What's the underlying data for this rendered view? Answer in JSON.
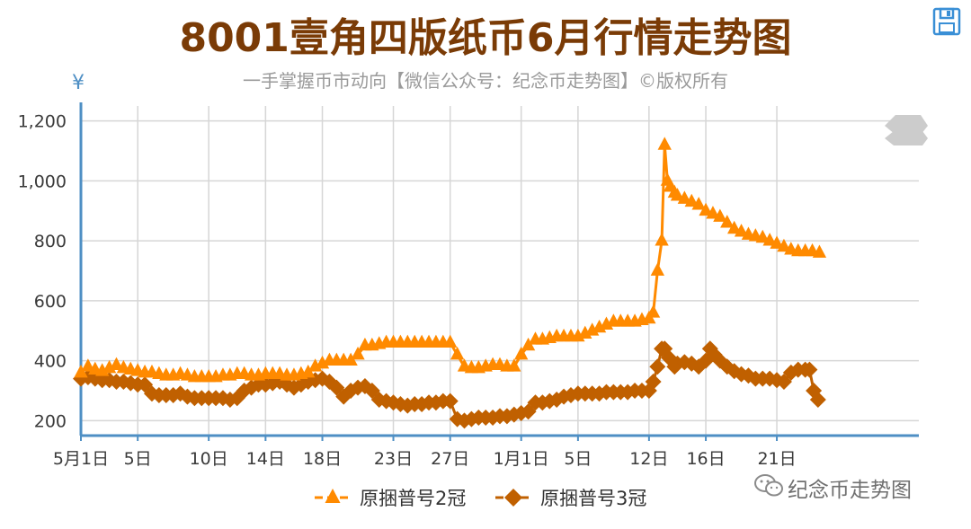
{
  "title": "8001壹角四版纸币6月行情走势图",
  "subtitle": "一手掌握币市动向【微信公众号：纪念币走势图】©版权所有",
  "y_unit": "¥",
  "watermark": "纪念币走势图",
  "icons": {
    "save": "save-icon",
    "zoom": "zoom-handle-icon",
    "wechat": "wechat-icon"
  },
  "colors": {
    "series1": "#ff8a00",
    "series2": "#c06000",
    "axis": "#4e8fc4",
    "grid": "#d6d6d6",
    "title": "#7a3b06"
  },
  "chart_data": {
    "type": "line",
    "ylim": [
      150,
      1250
    ],
    "y_ticks": [
      200,
      400,
      600,
      800,
      1000,
      1200
    ],
    "y_tick_labels": [
      "200",
      "400",
      "600",
      "800",
      "1,000",
      "1,200"
    ],
    "x_index_range": [
      0,
      59
    ],
    "x_ticks": [
      {
        "i": 0,
        "label": "5月1日"
      },
      {
        "i": 4,
        "label": "5日"
      },
      {
        "i": 9,
        "label": "10日"
      },
      {
        "i": 13,
        "label": "14日"
      },
      {
        "i": 17,
        "label": "18日"
      },
      {
        "i": 22,
        "label": "23日"
      },
      {
        "i": 26,
        "label": "27日"
      },
      {
        "i": 31,
        "label": "1月1日"
      },
      {
        "i": 35,
        "label": "5日"
      },
      {
        "i": 40,
        "label": "12日"
      },
      {
        "i": 44,
        "label": "16日"
      },
      {
        "i": 49,
        "label": "21日"
      }
    ],
    "legend_position": "bottom",
    "series": [
      {
        "name": "原捆普号2冠",
        "marker": "triangle",
        "x": [
          0,
          0.5,
          1,
          1.5,
          2,
          2.5,
          3,
          3.5,
          4,
          4.5,
          5,
          5.5,
          6,
          6.5,
          7,
          7.5,
          8,
          8.5,
          9,
          9.5,
          10,
          10.5,
          11,
          11.5,
          12,
          12.5,
          13,
          13.5,
          14,
          14.5,
          15,
          15.5,
          16,
          16.5,
          17,
          17.5,
          18,
          18.5,
          19,
          19.5,
          20,
          20.5,
          21,
          21.5,
          22,
          22.5,
          23,
          23.5,
          24,
          24.5,
          25,
          25.5,
          26,
          26.5,
          27,
          27.5,
          28,
          28.5,
          29,
          29.5,
          30,
          30.5,
          31,
          31.5,
          32,
          32.5,
          33,
          33.5,
          34,
          34.5,
          35,
          35.5,
          36,
          36.5,
          37,
          37.5,
          38,
          38.5,
          39,
          39.5,
          40,
          40.3,
          40.6,
          40.9,
          41.1,
          41.3,
          41.5,
          41.8,
          42,
          42.5,
          43,
          43.5,
          44,
          44.5,
          45,
          45.5,
          46,
          46.5,
          47,
          47.5,
          48,
          48.5,
          49,
          49.5,
          50,
          50.5,
          51,
          51.5,
          52
        ],
        "values": [
          360,
          380,
          370,
          365,
          375,
          385,
          375,
          370,
          365,
          360,
          360,
          355,
          350,
          350,
          355,
          350,
          345,
          345,
          345,
          345,
          350,
          350,
          355,
          355,
          350,
          350,
          355,
          355,
          355,
          350,
          350,
          355,
          360,
          380,
          390,
          400,
          400,
          400,
          400,
          420,
          450,
          450,
          455,
          460,
          460,
          460,
          460,
          460,
          460,
          460,
          460,
          460,
          460,
          420,
          380,
          375,
          375,
          380,
          385,
          385,
          380,
          380,
          420,
          450,
          470,
          470,
          475,
          480,
          480,
          480,
          480,
          490,
          500,
          510,
          520,
          530,
          530,
          530,
          530,
          535,
          540,
          560,
          700,
          800,
          1120,
          1000,
          980,
          960,
          950,
          940,
          930,
          920,
          900,
          890,
          880,
          860,
          840,
          830,
          820,
          815,
          810,
          800,
          790,
          780,
          770,
          765,
          765,
          765,
          760
        ]
      },
      {
        "name": "原捆普号3冠",
        "marker": "diamond",
        "x": [
          0,
          0.5,
          1,
          1.5,
          2,
          2.5,
          3,
          3.5,
          4,
          4.5,
          5,
          5.5,
          6,
          6.5,
          7,
          7.5,
          8,
          8.5,
          9,
          9.5,
          10,
          10.5,
          11,
          11.5,
          12,
          12.5,
          13,
          13.5,
          14,
          14.5,
          15,
          15.5,
          16,
          16.5,
          17,
          17.5,
          18,
          18.5,
          19,
          19.5,
          20,
          20.5,
          21,
          21.5,
          22,
          22.5,
          23,
          23.5,
          24,
          24.5,
          25,
          25.5,
          26,
          26.5,
          27,
          27.5,
          28,
          28.5,
          29,
          29.5,
          30,
          30.5,
          31,
          31.5,
          32,
          32.5,
          33,
          33.5,
          34,
          34.5,
          35,
          35.5,
          36,
          36.5,
          37,
          37.5,
          38,
          38.5,
          39,
          39.5,
          40,
          40.3,
          40.6,
          40.9,
          41.1,
          41.4,
          41.8,
          42,
          42.5,
          43,
          43.5,
          44,
          44.3,
          44.6,
          45,
          45.5,
          46,
          46.5,
          47,
          47.5,
          48,
          48.5,
          49,
          49.5,
          50,
          50.5,
          51,
          51.3,
          51.6,
          51.9
        ],
        "values": [
          340,
          345,
          340,
          335,
          335,
          330,
          330,
          325,
          320,
          320,
          290,
          285,
          285,
          285,
          290,
          280,
          275,
          275,
          275,
          275,
          275,
          270,
          275,
          300,
          310,
          320,
          320,
          325,
          330,
          320,
          310,
          320,
          330,
          335,
          340,
          330,
          310,
          280,
          300,
          310,
          315,
          300,
          270,
          265,
          260,
          255,
          250,
          255,
          255,
          260,
          260,
          265,
          265,
          205,
          200,
          205,
          210,
          210,
          210,
          215,
          215,
          220,
          225,
          230,
          260,
          260,
          265,
          270,
          280,
          285,
          290,
          290,
          290,
          290,
          295,
          295,
          295,
          295,
          300,
          300,
          300,
          330,
          380,
          440,
          440,
          410,
          380,
          390,
          395,
          390,
          380,
          400,
          440,
          420,
          400,
          380,
          365,
          355,
          350,
          340,
          340,
          340,
          335,
          330,
          360,
          370,
          370,
          370,
          300,
          270
        ]
      }
    ]
  }
}
